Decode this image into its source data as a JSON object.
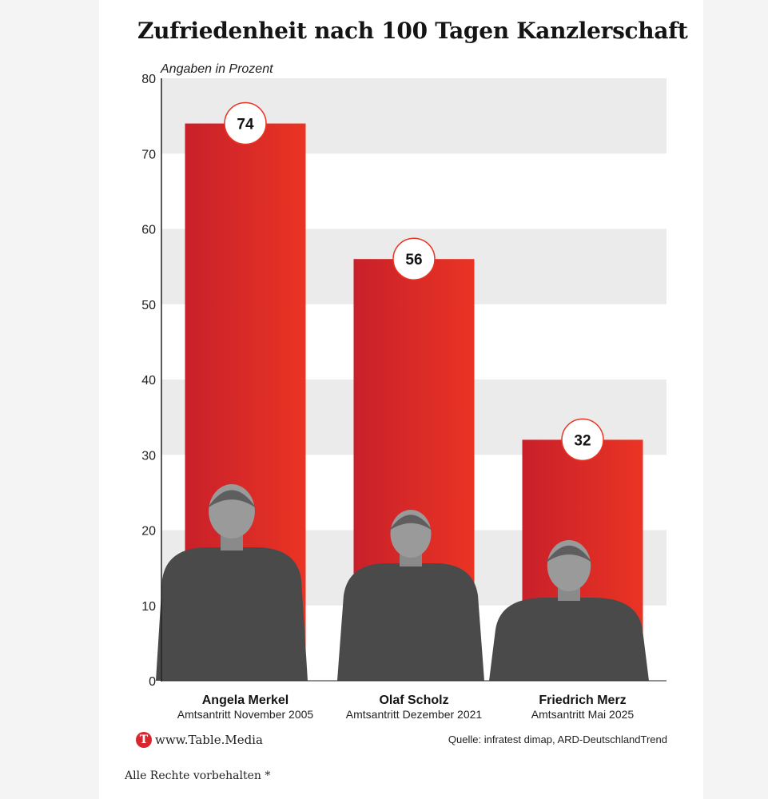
{
  "chart_data": {
    "type": "bar",
    "title": "Zufriedenheit nach 100 Tagen Kanzlerschaft",
    "ylabel": "Angaben in Prozent",
    "ylim": [
      0,
      80
    ],
    "yticks": [
      "0",
      "10",
      "20",
      "30",
      "40",
      "50",
      "60",
      "70",
      "80"
    ],
    "categories": [
      "Angela Merkel",
      "Olaf Scholz",
      "Friedrich Merz"
    ],
    "subtitles": [
      "Amtsantritt November 2005",
      "Amtsantritt Dezember 2021",
      "Amtsantritt Mai 2025"
    ],
    "values": [
      74,
      56,
      32
    ],
    "value_labels": [
      "74",
      "56",
      "32"
    ],
    "grid": "alternating bands",
    "colors": {
      "bar_dark": "#c8202a",
      "bar_light": "#ea3424",
      "band": "#ebebeb",
      "axis": "#222222",
      "portrait": "#4a4a4a"
    }
  },
  "footer": {
    "logo_letter": "T",
    "site": "www.Table.Media",
    "source": "Quelle: infratest dimap, ARD-DeutschlandTrend"
  },
  "page": {
    "rights": "Alle Rechte vorbehalten *"
  }
}
